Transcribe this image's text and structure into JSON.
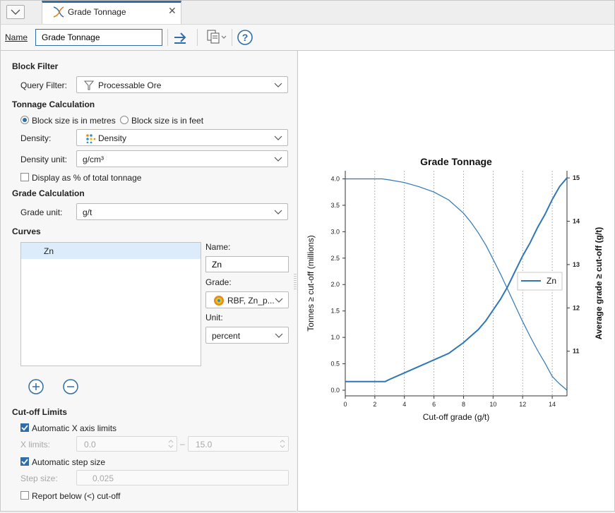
{
  "tab": {
    "title": "Grade Tonnage",
    "icon": "grade-tonnage-chart-icon"
  },
  "toolbar": {
    "name_label": "Name",
    "name_value": "Grade Tonnage"
  },
  "block_filter": {
    "header": "Block Filter",
    "query_filter_label": "Query Filter:",
    "query_filter_value": "Processable Ore"
  },
  "tonnage": {
    "header": "Tonnage Calculation",
    "radio_metres": "Block size is in metres",
    "radio_feet": "Block size is in feet",
    "density_label": "Density:",
    "density_value": "Density",
    "density_unit_label": "Density unit:",
    "density_unit_value": "g/cm³",
    "display_pct_label": "Display as % of total tonnage"
  },
  "grade_calc": {
    "header": "Grade Calculation",
    "grade_unit_label": "Grade unit:",
    "grade_unit_value": "g/t"
  },
  "curves": {
    "header": "Curves",
    "items": [
      "Zn"
    ],
    "name_label": "Name:",
    "name_value": "Zn",
    "grade_label": "Grade:",
    "grade_value": "RBF, Zn_p...",
    "unit_label": "Unit:",
    "unit_value": "percent"
  },
  "cutoff": {
    "header": "Cut-off Limits",
    "auto_x_label": "Automatic X axis limits",
    "x_limits_label": "X limits:",
    "x_min": "0.0",
    "x_dash": "–",
    "x_max": "15.0",
    "auto_step_label": "Automatic step size",
    "step_label": "Step size:",
    "step_value": "0.025",
    "report_below_label": "Report below (<) cut-off"
  },
  "chart_data": {
    "type": "line",
    "title": "Grade Tonnage",
    "xlabel": "Cut-off grade (g/t)",
    "ylabel_left": "Tonnes ≥ cut-off (millions)",
    "ylabel_right": "Average grade ≥ cut-off (g/t)",
    "xlim": [
      0,
      15
    ],
    "ylim_left": [
      0,
      4.1
    ],
    "ylim_right": [
      10.1,
      15.1
    ],
    "x_ticks": [
      "0",
      "2",
      "4",
      "6",
      "8",
      "10",
      "12",
      "14"
    ],
    "y_left_ticks": [
      "0.0",
      "0.5",
      "1.0",
      "1.5",
      "2.0",
      "2.5",
      "3.0",
      "3.5",
      "4.0"
    ],
    "y_right_ticks": [
      "11",
      "12",
      "13",
      "14",
      "15"
    ],
    "vertical_grid": true,
    "legend": {
      "position": "center-right",
      "entries": [
        "Zn"
      ]
    },
    "color": "#2f77b4",
    "series": [
      {
        "name": "Zn",
        "axis": "left",
        "x": [
          0,
          1,
          2,
          2.5,
          3,
          4,
          5,
          6,
          7,
          8,
          8.5,
          9,
          9.5,
          10,
          10.5,
          11,
          11.5,
          12,
          12.5,
          13,
          13.5,
          14,
          14.5,
          15
        ],
        "values": [
          4.0,
          4.0,
          4.0,
          4.0,
          3.98,
          3.93,
          3.85,
          3.75,
          3.6,
          3.35,
          3.18,
          2.98,
          2.75,
          2.48,
          2.2,
          1.9,
          1.6,
          1.3,
          1.02,
          0.76,
          0.52,
          0.26,
          0.12,
          0.0
        ]
      },
      {
        "name": "Zn",
        "axis": "right",
        "x": [
          0,
          1,
          2,
          2.7,
          3,
          4,
          5,
          6,
          7,
          8,
          8.5,
          9,
          9.5,
          10,
          10.5,
          11,
          11.5,
          12,
          12.5,
          13,
          13.5,
          14,
          14.5,
          15
        ],
        "values": [
          10.3,
          10.3,
          10.3,
          10.3,
          10.35,
          10.5,
          10.65,
          10.8,
          10.95,
          11.2,
          11.35,
          11.5,
          11.7,
          11.95,
          12.2,
          12.5,
          12.85,
          13.2,
          13.5,
          13.85,
          14.15,
          14.5,
          14.8,
          15.0
        ]
      }
    ]
  }
}
